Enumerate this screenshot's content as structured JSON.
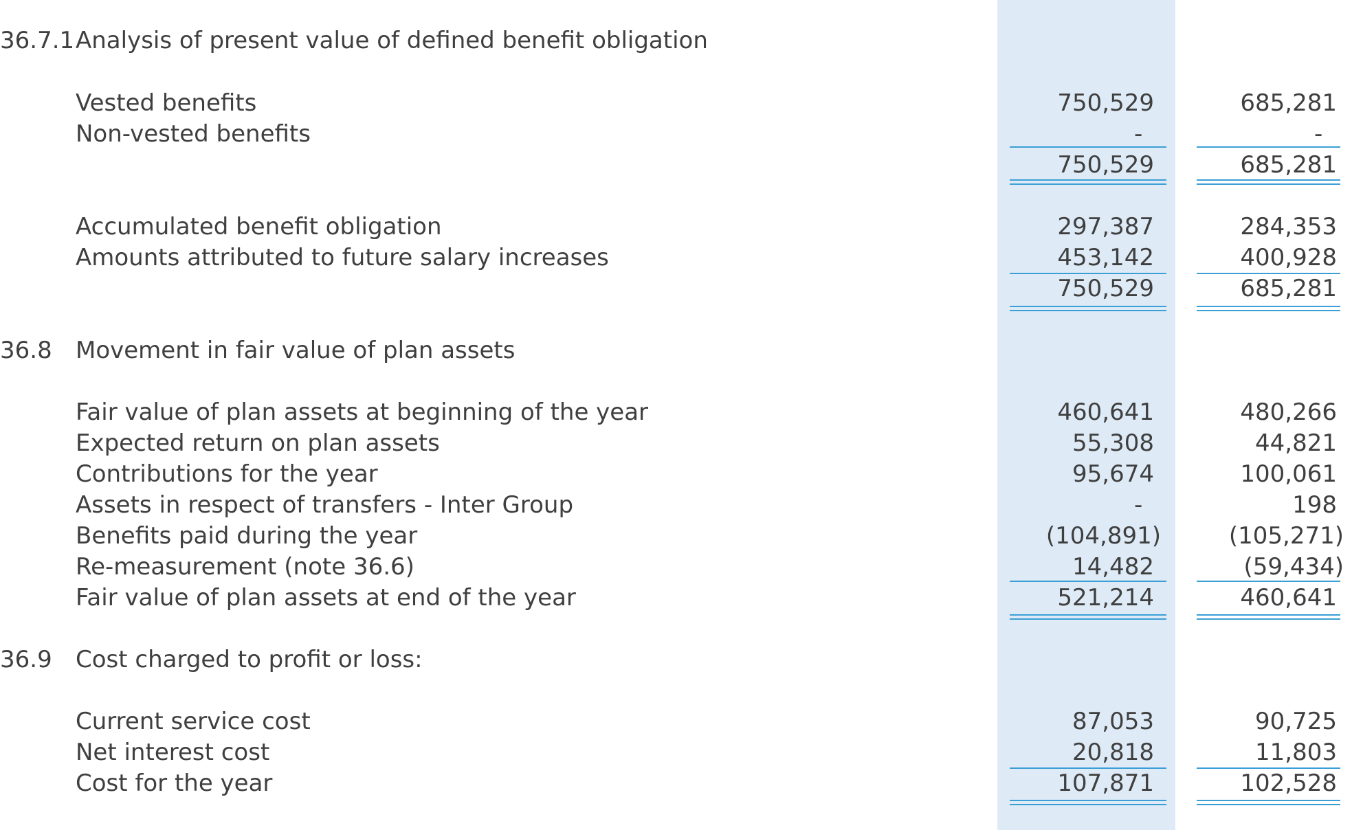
{
  "sections": {
    "s3671": {
      "number": "36.7.1",
      "title": "Analysis of present value of defined benefit obligation",
      "rows": [
        {
          "label": "Vested benefits",
          "v1": "750,529",
          "v2": "685,281"
        },
        {
          "label": "Non-vested benefits",
          "v1": "-",
          "v2": "-"
        },
        {
          "label": "",
          "v1": "750,529",
          "v2": "685,281"
        },
        {
          "label": "Accumulated benefit obligation",
          "v1": "297,387",
          "v2": "284,353"
        },
        {
          "label": "Amounts attributed to future salary increases",
          "v1": "453,142",
          "v2": "400,928"
        },
        {
          "label": "",
          "v1": "750,529",
          "v2": "685,281"
        }
      ]
    },
    "s368": {
      "number": "36.8",
      "title": "Movement in fair value of plan assets",
      "rows": [
        {
          "label": "Fair value of plan assets at beginning of the year",
          "v1": "460,641",
          "v2": "480,266"
        },
        {
          "label": "Expected return on plan assets",
          "v1": "55,308",
          "v2": "44,821"
        },
        {
          "label": "Contributions for the year",
          "v1": "95,674",
          "v2": "100,061"
        },
        {
          "label": "Assets in respect of transfers - Inter Group",
          "v1": "-",
          "v2": "198"
        },
        {
          "label": "Benefits paid during the year",
          "v1": "(104,891)",
          "v2": "(105,271)"
        },
        {
          "label": "Re-measurement (note 36.6)",
          "v1": "14,482",
          "v2": "(59,434)"
        },
        {
          "label": "Fair value of plan assets at end of the year",
          "v1": "521,214",
          "v2": "460,641"
        }
      ]
    },
    "s369": {
      "number": "36.9",
      "title": "Cost charged to profit or loss:",
      "rows": [
        {
          "label": "Current service cost",
          "v1": "87,053",
          "v2": "90,725"
        },
        {
          "label": "Net interest cost",
          "v1": "20,818",
          "v2": "11,803"
        },
        {
          "label": "Cost for the year",
          "v1": "107,871",
          "v2": "102,528"
        }
      ]
    }
  },
  "colors": {
    "text": "#3f3f3f",
    "column_shade": "#deebf7",
    "rule": "#3a9fd6"
  }
}
